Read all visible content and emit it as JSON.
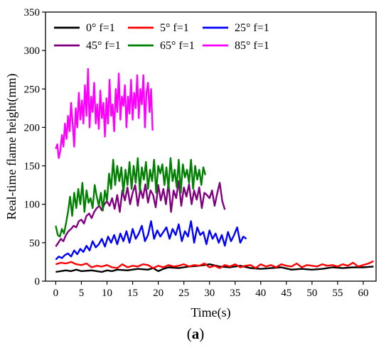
{
  "caption": {
    "open": "(",
    "letter": "a",
    "close": ")"
  },
  "chart_data": {
    "type": "line",
    "title": "",
    "xlabel": "Time(s)",
    "ylabel": "Real-time flame  height(mm)",
    "xlim": [
      -2,
      62.5
    ],
    "ylim": [
      0,
      350
    ],
    "xticks": [
      0,
      5,
      10,
      15,
      20,
      25,
      30,
      35,
      40,
      45,
      50,
      55,
      60
    ],
    "yticks": [
      0,
      50,
      100,
      150,
      200,
      250,
      300,
      350
    ],
    "grid": false,
    "legend": "top-left, inside",
    "series": [
      {
        "name": "0°   f=1",
        "color": "#000000",
        "x": [
          0,
          2,
          3,
          4,
          5,
          7,
          8,
          9,
          10,
          11,
          12,
          14,
          16,
          18,
          19,
          20,
          21,
          22,
          24,
          26,
          28,
          29,
          30,
          32,
          34,
          36,
          38,
          40,
          42,
          44,
          46,
          48,
          50,
          52,
          54,
          56,
          58,
          60,
          62
        ],
        "y": [
          12,
          14,
          13,
          15,
          13,
          14,
          13,
          12,
          14,
          13,
          15,
          14,
          16,
          15,
          17,
          13,
          16,
          18,
          17,
          19,
          20,
          21,
          22,
          19,
          18,
          20,
          17,
          16,
          17,
          18,
          15,
          16,
          15,
          16,
          18,
          17,
          18,
          18,
          19
        ]
      },
      {
        "name": "5°   f=1",
        "color": "#ff0000",
        "x": [
          0,
          1,
          2,
          3,
          4,
          5,
          6,
          7,
          8,
          9,
          10,
          11,
          12,
          13,
          14,
          15,
          16,
          17,
          18,
          19,
          20,
          21,
          22,
          23,
          24,
          25,
          26,
          27,
          28,
          29,
          30,
          31,
          32,
          33,
          34,
          35,
          36,
          37,
          38,
          39,
          40,
          41,
          42,
          43,
          44,
          45,
          46,
          47,
          48,
          49,
          50,
          51,
          52,
          53,
          54,
          55,
          56,
          57,
          58,
          59,
          60,
          61,
          62
        ],
        "y": [
          22,
          24,
          23,
          25,
          22,
          21,
          23,
          18,
          20,
          19,
          21,
          18,
          17,
          22,
          18,
          20,
          19,
          22,
          21,
          17,
          20,
          18,
          21,
          19,
          20,
          22,
          19,
          21,
          20,
          23,
          18,
          20,
          17,
          21,
          19,
          22,
          18,
          20,
          21,
          17,
          22,
          19,
          21,
          18,
          22,
          20,
          19,
          23,
          18,
          21,
          20,
          19,
          22,
          20,
          21,
          19,
          22,
          20,
          24,
          19,
          21,
          23,
          26
        ]
      },
      {
        "name": "25° f=1",
        "color": "#0000ff",
        "x": [
          0,
          0.6,
          1.2,
          1.8,
          2.4,
          3,
          3.6,
          4.2,
          4.8,
          5.4,
          6,
          6.6,
          7.2,
          7.8,
          8.4,
          9,
          9.6,
          10.2,
          10.8,
          11.4,
          12,
          12.6,
          13.2,
          13.8,
          14.4,
          15,
          15.6,
          16.2,
          16.8,
          17.4,
          18,
          18.6,
          19.2,
          19.8,
          20.4,
          21,
          21.6,
          22.2,
          22.8,
          23.4,
          24,
          24.6,
          25.2,
          25.8,
          26.4,
          27,
          27.6,
          28.2,
          28.8,
          29.4,
          30,
          30.6,
          31.2,
          31.8,
          32.4,
          33,
          33.6,
          34.2,
          34.8,
          35.4,
          36,
          36.6,
          37.2
        ],
        "y": [
          28,
          32,
          30,
          34,
          36,
          32,
          40,
          35,
          42,
          38,
          46,
          40,
          52,
          44,
          48,
          55,
          45,
          58,
          50,
          60,
          48,
          62,
          52,
          65,
          50,
          68,
          55,
          62,
          72,
          52,
          60,
          78,
          55,
          66,
          58,
          64,
          70,
          55,
          68,
          60,
          74,
          52,
          65,
          58,
          78,
          50,
          70,
          60,
          64,
          48,
          66,
          55,
          62,
          50,
          60,
          46,
          64,
          52,
          60,
          70,
          50,
          58,
          55
        ]
      },
      {
        "name": "45° f=1",
        "color": "#800080",
        "x": [
          0,
          0.5,
          1,
          1.5,
          2,
          2.5,
          3,
          3.5,
          4,
          4.5,
          5,
          5.5,
          6,
          6.5,
          7,
          7.5,
          8,
          8.5,
          9,
          9.5,
          10,
          10.5,
          11,
          11.5,
          12,
          12.5,
          13,
          13.5,
          14,
          14.5,
          15,
          15.5,
          16,
          16.5,
          17,
          17.5,
          18,
          18.5,
          19,
          19.5,
          20,
          20.5,
          21,
          21.5,
          22,
          22.5,
          23,
          23.5,
          24,
          24.5,
          25,
          25.5,
          26,
          26.5,
          27,
          27.5,
          28,
          28.5,
          29,
          29.5,
          30,
          30.5,
          31,
          31.5,
          32,
          32.5,
          33
        ],
        "y": [
          45,
          50,
          55,
          52,
          60,
          65,
          68,
          72,
          70,
          78,
          80,
          75,
          85,
          88,
          82,
          90,
          95,
          98,
          92,
          100,
          104,
          98,
          108,
          94,
          112,
          90,
          118,
          105,
          122,
          100,
          115,
          125,
          98,
          120,
          108,
          126,
          102,
          118,
          112,
          96,
          125,
          105,
          120,
          100,
          128,
          90,
          118,
          108,
          130,
          98,
          122,
          110,
          126,
          100,
          118,
          106,
          122,
          95,
          115,
          112,
          108,
          118,
          98,
          114,
          128,
          104,
          93
        ]
      },
      {
        "name": "65° f=1",
        "color": "#008000",
        "x": [
          0,
          0.4,
          0.8,
          1.2,
          1.6,
          2,
          2.4,
          2.8,
          3.2,
          3.6,
          4,
          4.4,
          4.8,
          5.2,
          5.6,
          6,
          6.4,
          6.8,
          7.2,
          7.6,
          8,
          8.4,
          8.8,
          9.2,
          9.6,
          10,
          10.4,
          10.8,
          11.2,
          11.6,
          12,
          12.4,
          12.8,
          13.2,
          13.6,
          14,
          14.4,
          14.8,
          15.2,
          15.6,
          16,
          16.4,
          16.8,
          17.2,
          17.6,
          18,
          18.4,
          18.8,
          19.2,
          19.6,
          20,
          20.4,
          20.8,
          21.2,
          21.6,
          22,
          22.4,
          22.8,
          23.2,
          23.6,
          24,
          24.4,
          24.8,
          25.2,
          25.6,
          26,
          26.4,
          26.8,
          27.2,
          27.6,
          28,
          28.4,
          28.8,
          29.2
        ],
        "y": [
          72,
          60,
          58,
          68,
          62,
          75,
          90,
          110,
          85,
          115,
          95,
          120,
          100,
          128,
          90,
          118,
          102,
          108,
          95,
          125,
          110,
          98,
          115,
          92,
          118,
          105,
          140,
          120,
          158,
          125,
          150,
          130,
          148,
          115,
          145,
          125,
          155,
          120,
          150,
          128,
          160,
          118,
          148,
          132,
          155,
          120,
          145,
          130,
          158,
          115,
          150,
          140,
          152,
          125,
          148,
          120,
          160,
          130,
          145,
          122,
          158,
          115,
          152,
          135,
          145,
          128,
          158,
          120,
          150,
          132,
          145,
          125,
          148,
          138
        ]
      },
      {
        "name": "85° f=1",
        "color": "#ff00ff",
        "x": [
          0,
          0.3,
          0.6,
          0.9,
          1.2,
          1.5,
          1.8,
          2.1,
          2.4,
          2.7,
          3,
          3.3,
          3.6,
          3.9,
          4.2,
          4.5,
          4.8,
          5.1,
          5.4,
          5.7,
          6,
          6.3,
          6.6,
          6.9,
          7.2,
          7.5,
          7.8,
          8.1,
          8.4,
          8.7,
          9,
          9.3,
          9.6,
          9.9,
          10.2,
          10.5,
          10.8,
          11.1,
          11.4,
          11.7,
          12,
          12.3,
          12.6,
          12.9,
          13.2,
          13.5,
          13.8,
          14.1,
          14.4,
          14.7,
          15,
          15.3,
          15.6,
          15.9,
          16.2,
          16.5,
          16.8,
          17.1,
          17.4,
          17.7,
          18,
          18.3,
          18.6,
          18.9
        ],
        "y": [
          172,
          178,
          160,
          170,
          190,
          175,
          205,
          185,
          215,
          195,
          232,
          205,
          175,
          225,
          200,
          245,
          210,
          235,
          205,
          255,
          215,
          276,
          200,
          240,
          220,
          258,
          205,
          230,
          198,
          248,
          212,
          232,
          188,
          238,
          205,
          262,
          215,
          230,
          195,
          250,
          220,
          270,
          210,
          240,
          228,
          255,
          200,
          240,
          218,
          262,
          210,
          245,
          225,
          268,
          212,
          250,
          230,
          268,
          200,
          245,
          258,
          220,
          250,
          196
        ]
      }
    ]
  }
}
